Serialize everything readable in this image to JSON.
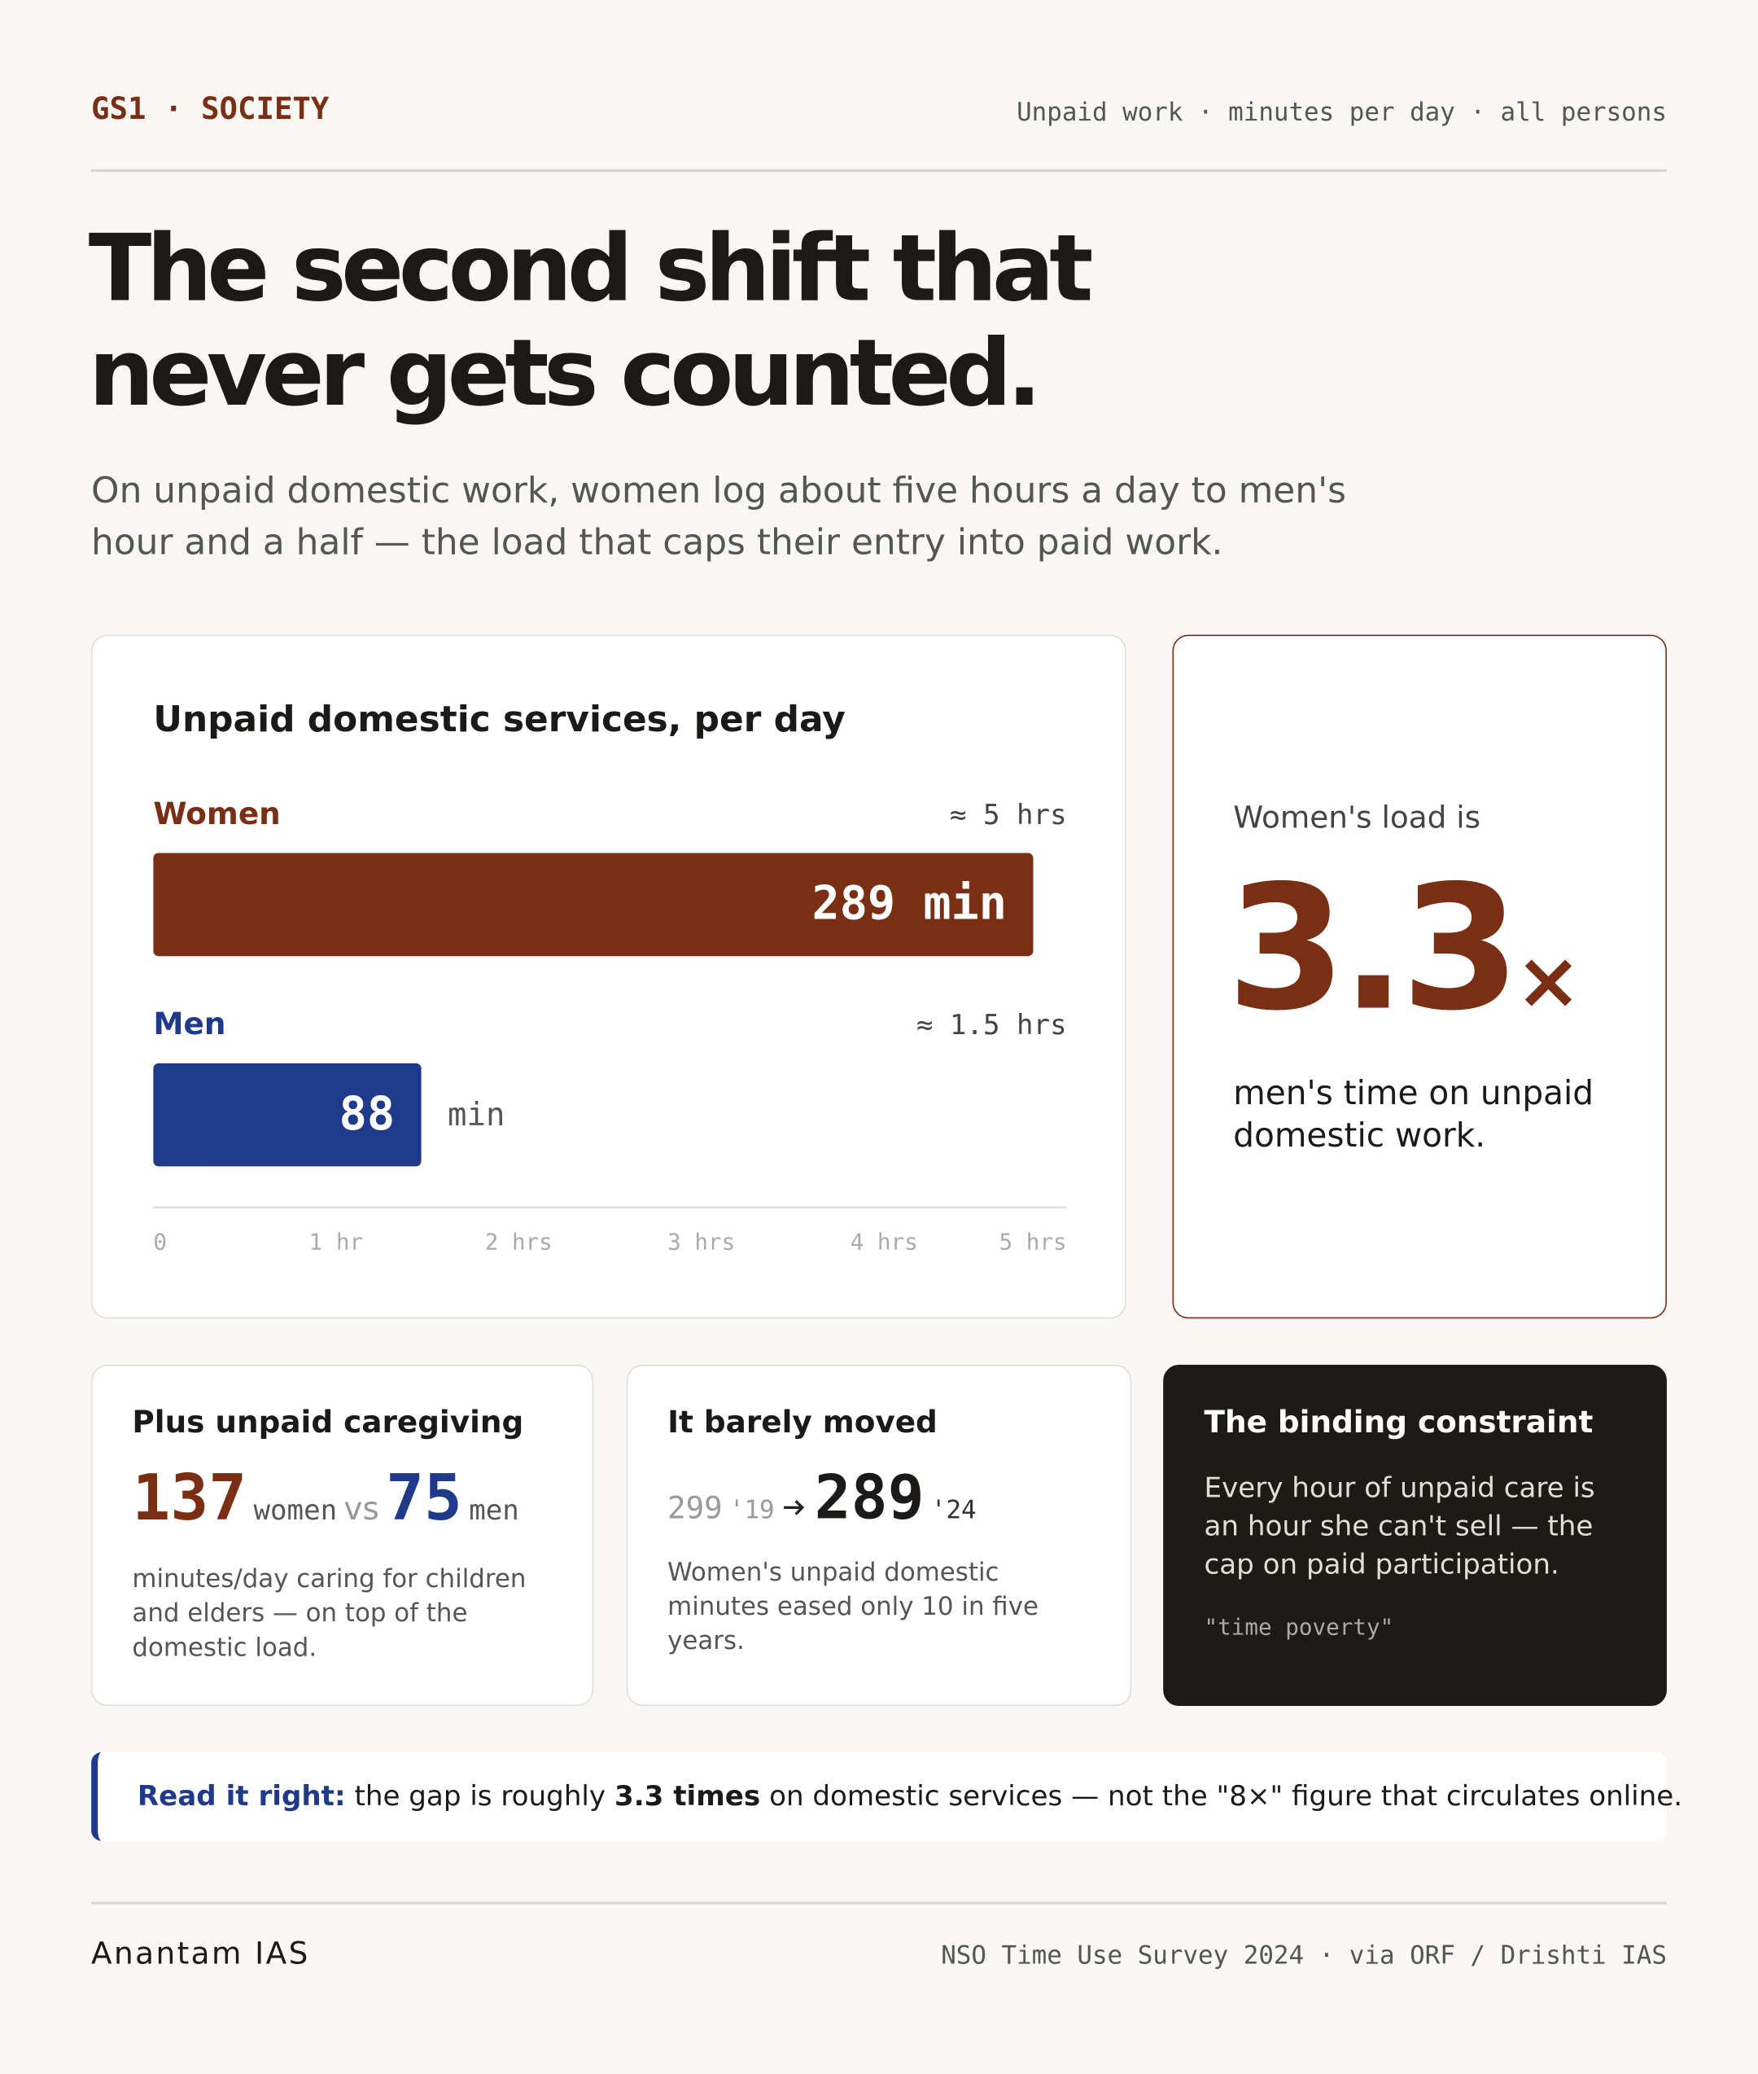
{
  "header": {
    "tag": "GS1 · SOCIETY",
    "meta": "Unpaid work · minutes per day · all persons"
  },
  "title": [
    "The second shift that",
    "never gets counted."
  ],
  "subtitle": [
    "On unpaid domestic work, women log about five hours a day to men's",
    "hour and a half — the load that caps their entry into paid work."
  ],
  "chart_data": {
    "type": "bar",
    "orientation": "horizontal",
    "title": "Unpaid domestic services, per day",
    "categories": [
      "Women",
      "Men"
    ],
    "values": [
      289,
      88
    ],
    "value_labels": [
      "289 min",
      "88"
    ],
    "unit": "min",
    "approx_labels": [
      "≈ 5 hrs",
      "≈ 1.5 hrs"
    ],
    "colors": [
      "#7a2e14",
      "#1f3a8a"
    ],
    "xlim": [
      0,
      300
    ],
    "xticks": [
      0,
      {
        "value": 60,
        "label": "1 hr"
      },
      {
        "value": 120,
        "label": "2 hrs"
      },
      {
        "value": 180,
        "label": "3 hrs"
      },
      {
        "value": 240,
        "label": "4 hrs"
      },
      {
        "value": 300,
        "label": "5 hrs"
      }
    ]
  },
  "ratio_card": {
    "lead": "Women's load is",
    "value": "3.3",
    "suffix": "×",
    "text": [
      "men's time on unpaid",
      "domestic work."
    ]
  },
  "caregiving": {
    "title": "Plus unpaid caregiving",
    "women": 137,
    "women_label": "women",
    "vs": "vs",
    "men": 75,
    "men_label": "men",
    "text": [
      "minutes/day caring for children",
      "and elders — on top of the",
      "domestic load."
    ]
  },
  "moved": {
    "title": "It barely moved",
    "from": 299,
    "from_label": "'19",
    "to": 289,
    "to_label": "'24",
    "text": [
      "Women's unpaid domestic",
      "minutes eased only 10 in five",
      "years."
    ]
  },
  "constraint": {
    "title": "The binding constraint",
    "text": [
      "Every hour of unpaid care is",
      "an hour she can't sell — the",
      "cap on paid participation."
    ],
    "quote": "\"time poverty\""
  },
  "note": {
    "lead": "Read it right:",
    "pre": "the gap is roughly",
    "bold": "3.3 times",
    "post": "on domestic services — not the \"8×\" figure that circulates online."
  },
  "footer": {
    "brand": "Anantam IAS",
    "source": "NSO Time Use Survey 2024 · via ORF / Drishti IAS"
  }
}
